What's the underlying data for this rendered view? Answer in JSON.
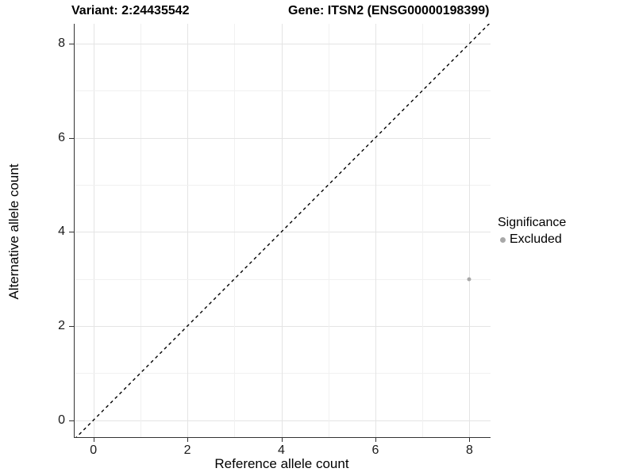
{
  "header": {
    "title_left": "Variant: 2:24435542",
    "title_right": "Gene: ITSN2 (ENSG00000198399)"
  },
  "axes": {
    "x_title": "Reference allele count",
    "y_title": "Alternative allele count"
  },
  "legend": {
    "title": "Significance",
    "entries": [
      {
        "label": "Excluded",
        "color": "#a8a8a8"
      }
    ]
  },
  "colors": {
    "axis_line": "#333333",
    "grid_major": "#e4e4e4",
    "grid_minor": "#f1f1f1",
    "reference_line": "#000000",
    "point": "#a8a8a8"
  },
  "chart_data": {
    "type": "scatter",
    "title": "Variant: 2:24435542        Gene: ITSN2 (ENSG00000198399)",
    "xlabel": "Reference allele count",
    "ylabel": "Alternative allele count",
    "xlim": [
      -0.4,
      8.45
    ],
    "ylim": [
      -0.36,
      8.42
    ],
    "x_ticks": [
      0,
      2,
      4,
      6,
      8
    ],
    "y_ticks": [
      0,
      2,
      4,
      6,
      8
    ],
    "gridlines": [
      0,
      1,
      2,
      3,
      4,
      5,
      6,
      7,
      8
    ],
    "grid": "on",
    "legend_position": "right",
    "legend_title": "Significance",
    "series": [
      {
        "name": "Excluded",
        "color": "#a8a8a8",
        "point_radius_px": 2.5,
        "points": [
          {
            "x": 8,
            "y": 3
          }
        ]
      }
    ],
    "reference_line": {
      "type": "identity y=x",
      "style": "dashed",
      "color": "#000000",
      "x1": -0.4,
      "y1": -0.4,
      "x2": 8.45,
      "y2": 8.45
    }
  }
}
